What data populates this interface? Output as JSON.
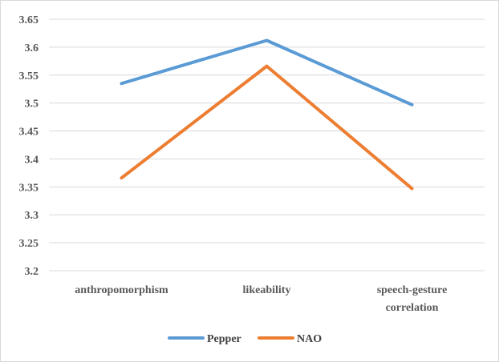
{
  "chart_data": {
    "type": "line",
    "categories": [
      "anthropomorphism",
      "likeability",
      "speech-gesture correlation"
    ],
    "series": [
      {
        "name": "Pepper",
        "values": [
          3.535,
          3.612,
          3.497
        ],
        "color": "#5b9bd5"
      },
      {
        "name": "NAO",
        "values": [
          3.366,
          3.566,
          3.347
        ],
        "color": "#ed7d31"
      }
    ],
    "ylim": [
      3.2,
      3.65
    ],
    "yticks": [
      "3.2",
      "3.25",
      "3.3",
      "3.35",
      "3.4",
      "3.45",
      "3.5",
      "3.55",
      "3.6",
      "3.65"
    ],
    "grid": true,
    "legend_position": "bottom"
  }
}
